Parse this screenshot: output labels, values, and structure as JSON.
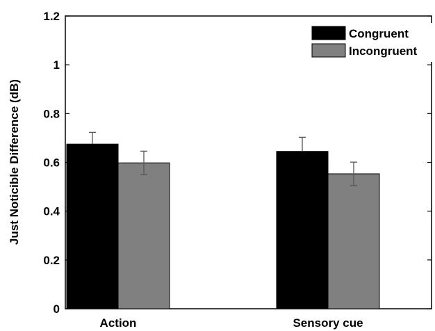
{
  "chart_data": {
    "type": "bar",
    "title": "",
    "xlabel": "",
    "ylabel": "Just Noticible Difference (dB)",
    "ylim": [
      0,
      1.2
    ],
    "yticks": [
      0,
      0.2,
      0.4,
      0.6,
      0.8,
      1,
      1.2
    ],
    "ytick_labels": [
      "0",
      "0.2",
      "0.4",
      "0.6",
      "0.8",
      "1",
      "1.2"
    ],
    "categories": [
      "Action",
      "Sensory cue"
    ],
    "series": [
      {
        "name": "Congruent",
        "color": "#000000",
        "values": [
          0.675,
          0.645
        ],
        "errors": [
          0.048,
          0.058
        ]
      },
      {
        "name": "Incongruent",
        "color": "#808080",
        "values": [
          0.598,
          0.553
        ],
        "errors": [
          0.048,
          0.048
        ]
      }
    ],
    "legend": "top-right",
    "grid": false
  }
}
